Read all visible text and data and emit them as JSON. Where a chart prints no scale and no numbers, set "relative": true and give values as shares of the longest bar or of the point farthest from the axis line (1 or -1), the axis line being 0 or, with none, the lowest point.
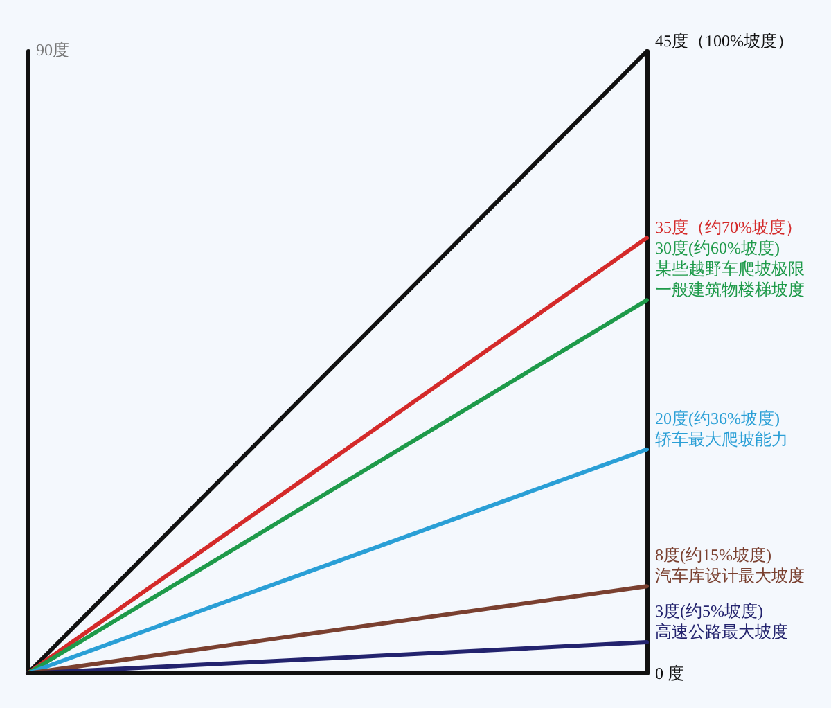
{
  "chart_data": {
    "type": "line",
    "relative": true,
    "categories": [
      null,
      null
    ],
    "grid": false,
    "marker": "none",
    "line_style": "solid",
    "series": [
      {
        "name": "45度（100%坡度）",
        "color": "#111111",
        "values": [
          0,
          1
        ]
      },
      {
        "name": "35度（约70%坡度）",
        "color": "#d42a2a",
        "values": [
          0,
          0.7
        ]
      },
      {
        "name": "30度(约60%坡度)某些越野车爬坡极限一般建筑物楼梯坡度",
        "color": "#1e9a4a",
        "values": [
          0,
          0.6
        ]
      },
      {
        "name": "20度(约36%坡度)轿车最大爬坡能力",
        "color": "#2a9fd6",
        "values": [
          0,
          0.36
        ]
      },
      {
        "name": "8度(约15%坡度)汽车库设计最大坡度",
        "color": "#7a4030",
        "values": [
          0,
          0.14
        ]
      },
      {
        "name": "3度(约5%坡度)高速公路最大坡度",
        "color": "#23236e",
        "values": [
          0,
          0.05
        ]
      },
      {
        "name": "0 度",
        "color": "#111111",
        "values": [
          0,
          0
        ]
      }
    ],
    "annotations": [
      "90度"
    ]
  }
}
